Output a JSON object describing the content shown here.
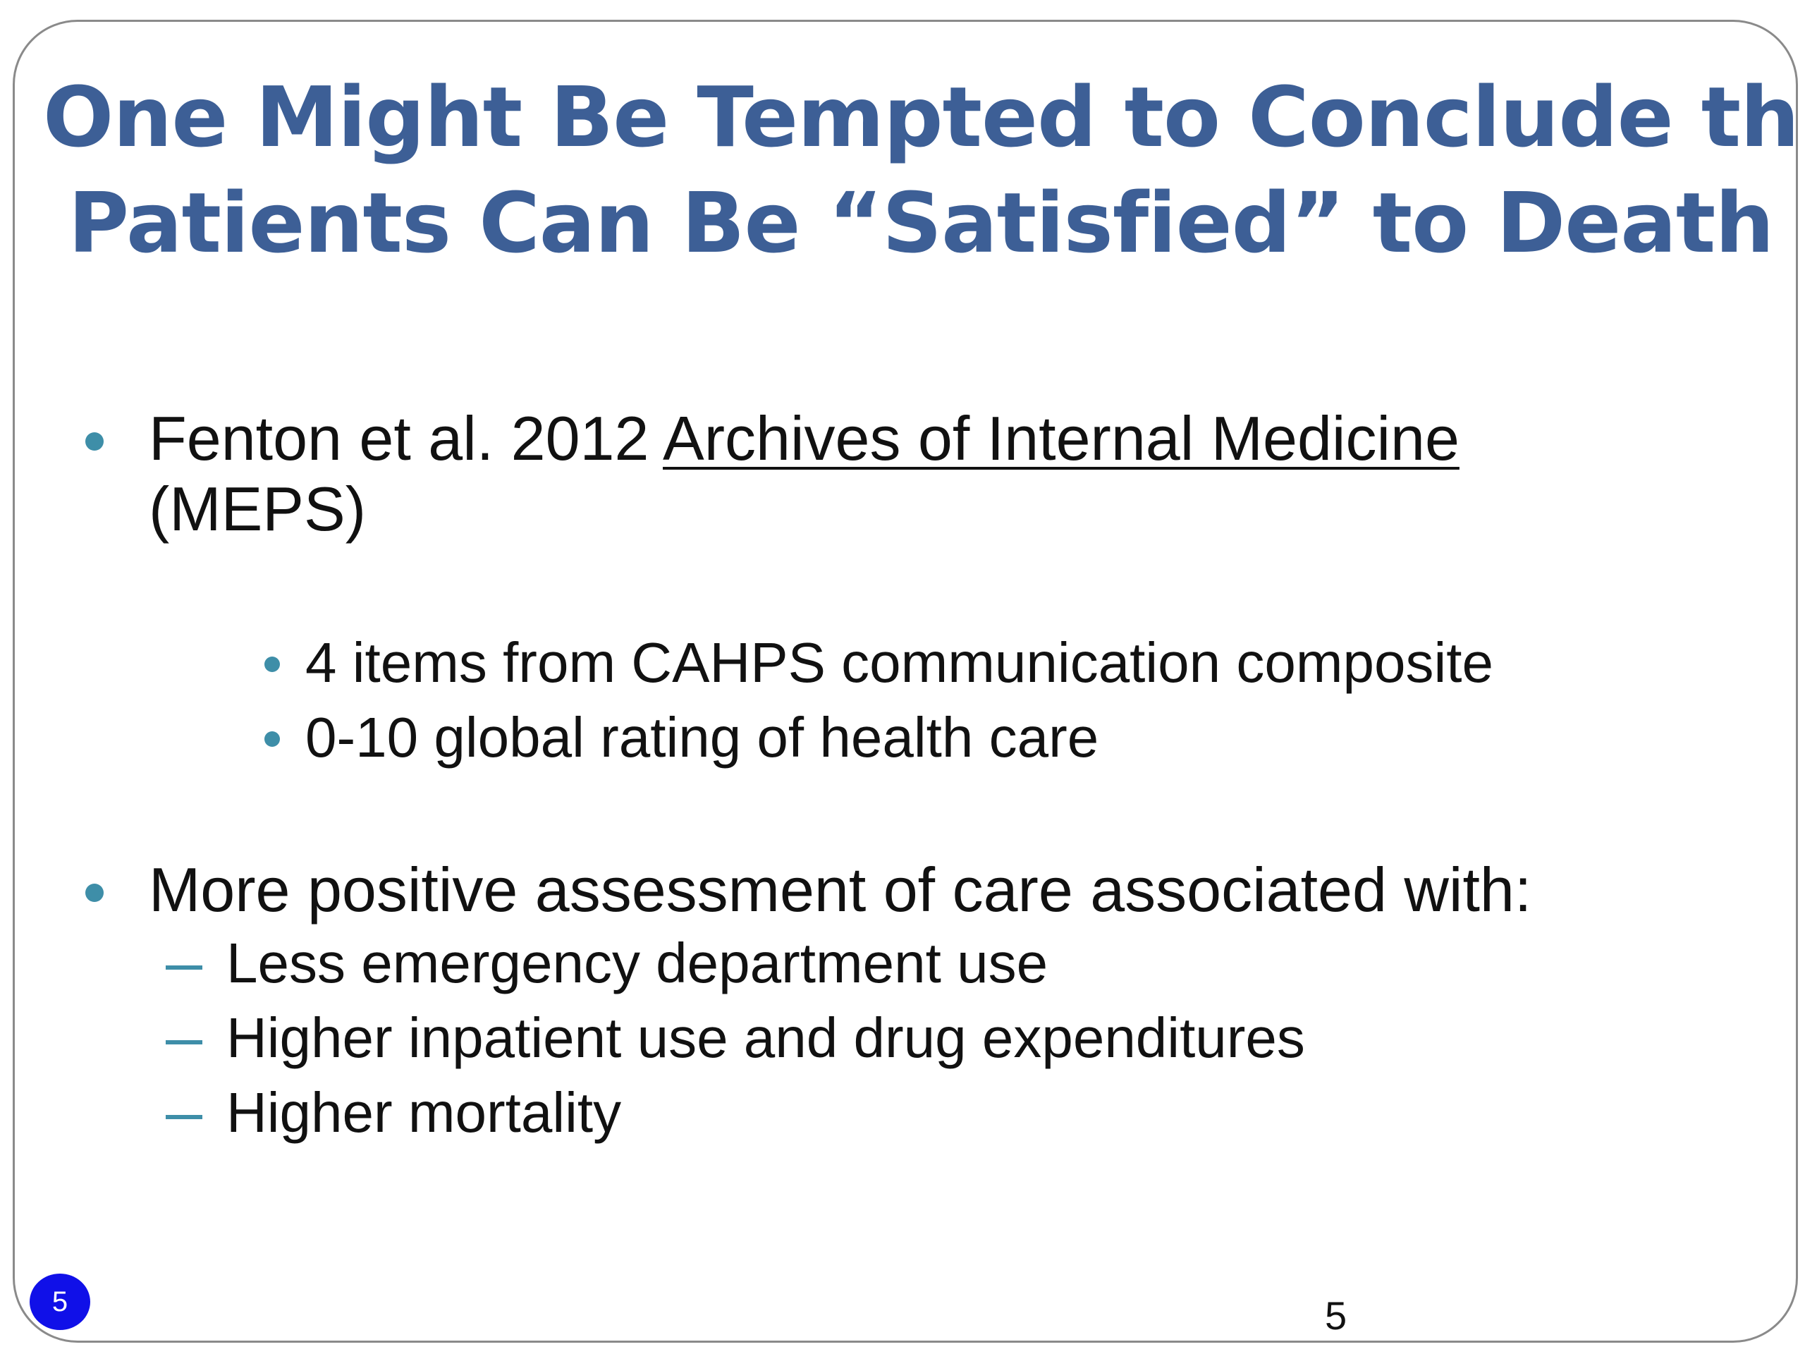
{
  "slide": {
    "title_line1": "One Might Be Tempted to Conclude that",
    "title_line2": "Patients Can Be “Satisfied” to Death",
    "bullets": [
      {
        "prefix": "Fenton et al. 2012 ",
        "journal": "Archives of Internal Medicine",
        "continuation": "(MEPS)",
        "subitems": [
          "4 items from CAHPS communication composite",
          "0-10 global rating of health care"
        ]
      },
      {
        "text": "More positive assessment of care associated with:",
        "subitems": [
          "Less emergency department use",
          "Higher inpatient use and drug expenditures",
          "Higher mortality"
        ]
      }
    ],
    "badge_number": "5",
    "page_number": "5"
  },
  "colors": {
    "title": "#3d5f96",
    "bullet": "#3e8ea8",
    "badge": "#1010e8"
  }
}
